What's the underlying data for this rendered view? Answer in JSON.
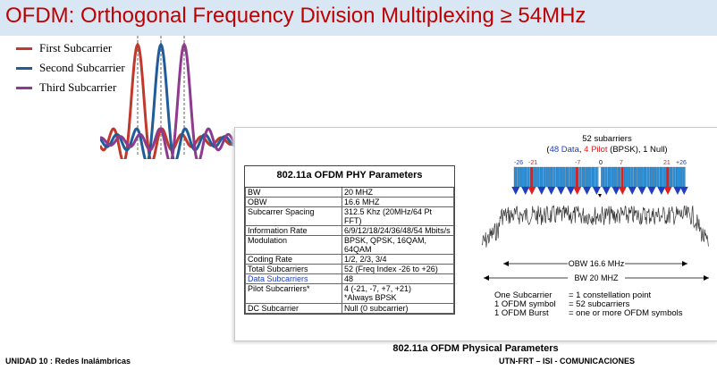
{
  "title": "OFDM: Orthogonal Frequency Division Multiplexing ≥ 54MHz",
  "legend": [
    {
      "label": "First Subcarrier",
      "color": "#c0392b"
    },
    {
      "label": "Second Subcarrier",
      "color": "#1f5c99"
    },
    {
      "label": "Third Subcarrier",
      "color": "#8e3a8e"
    }
  ],
  "table": {
    "title": "802.11a OFDM PHY Parameters",
    "rows": [
      {
        "param": "BW",
        "value": "20 MHZ"
      },
      {
        "param": "OBW",
        "value": "16.6 MHZ"
      },
      {
        "param": "Subcarrer Spacing",
        "value": "312.5 Khz  (20MHz/64 Pt FFT)"
      },
      {
        "param": "Information Rate",
        "value": "6/9/12/18/24/36/48/54 Mbits/s"
      },
      {
        "param": "Modulation",
        "value": "BPSK, QPSK, 16QAM, 64QAM"
      },
      {
        "param": "Coding Rate",
        "value": "1/2,  2/3, 3/4"
      },
      {
        "param": "Total Subcarriers",
        "value": "52  (Freq Index -26 to +26)"
      },
      {
        "param": "Data Subcarriers",
        "value": "48"
      },
      {
        "param": "Pilot Subcarriers*",
        "value": "4 (-21, -7, +7, +21)",
        "value2": "*Always BPSK"
      },
      {
        "param": "DC Subcarrier",
        "value": "Null (0 subcarrier)"
      }
    ]
  },
  "spectrum": {
    "heading": "52 subarriers",
    "sub_open": "(",
    "sub_data": "48 Data",
    "sub_comma": ", ",
    "sub_pilot": "4 Pilot",
    "sub_rest": " (BPSK), 1 Null)",
    "idx_m26": "-26",
    "idx_m21": "-21",
    "idx_m7": "-7",
    "idx_0": "0",
    "idx_7": "7",
    "idx_21": "21",
    "idx_p26": "+26",
    "obw_label": "OBW 16.6 MHz",
    "bw_label": "BW 20 MHZ"
  },
  "notes": [
    {
      "left": "One Subcarrier",
      "right": "= 1 constellation point"
    },
    {
      "left": "1 OFDM symbol",
      "right": "= 52 subcarriers"
    },
    {
      "left": "1 OFDM Burst",
      "right": "= one or more OFDM symbols"
    }
  ],
  "panel_caption": "802.11a OFDM Physical Parameters",
  "footer_left": "UNIDAD 10 : Redes Inalámbricas",
  "footer_right": "UTN-FRT – ISI - COMUNICACIONES",
  "colors": {
    "title": "#c00000",
    "title_bar": "#d9e7f5",
    "data": "#1f3fbf",
    "pilot": "#e02020",
    "bar": "#2a8fd6"
  }
}
